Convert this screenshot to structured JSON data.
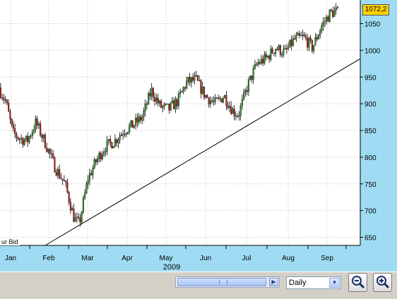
{
  "chart_data": {
    "type": "candlestick",
    "xlabel": "2009",
    "x_ticks": [
      "Jan",
      "Feb",
      "Mar",
      "Apr",
      "May",
      "Jun",
      "Jul",
      "Aug",
      "Sep"
    ],
    "y_ticks": [
      650,
      700,
      750,
      800,
      850,
      900,
      950,
      1000,
      1050
    ],
    "ylim": [
      620,
      1075
    ],
    "grid": true,
    "last_value": "1072,2",
    "series_label": "ur Bid",
    "trendline": {
      "start": [
        "2009-02-01",
        630
      ],
      "end": [
        "2009-09-28",
        1012
      ]
    },
    "candles_weekly_close": [
      [
        "2009-01-01",
        930
      ],
      [
        "2009-01-08",
        905
      ],
      [
        "2009-01-15",
        845
      ],
      [
        "2009-01-22",
        835
      ],
      [
        "2009-01-29",
        830
      ],
      [
        "2009-02-05",
        865
      ],
      [
        "2009-02-12",
        825
      ],
      [
        "2009-02-19",
        780
      ],
      [
        "2009-02-26",
        750
      ],
      [
        "2009-03-05",
        685
      ],
      [
        "2009-03-09",
        675
      ],
      [
        "2009-03-16",
        760
      ],
      [
        "2009-03-23",
        795
      ],
      [
        "2009-03-30",
        820
      ],
      [
        "2009-04-06",
        830
      ],
      [
        "2009-04-13",
        850
      ],
      [
        "2009-04-20",
        860
      ],
      [
        "2009-04-27",
        875
      ],
      [
        "2009-05-04",
        925
      ],
      [
        "2009-05-11",
        895
      ],
      [
        "2009-05-18",
        890
      ],
      [
        "2009-05-25",
        905
      ],
      [
        "2009-06-01",
        940
      ],
      [
        "2009-06-08",
        945
      ],
      [
        "2009-06-15",
        915
      ],
      [
        "2009-06-22",
        900
      ],
      [
        "2009-06-29",
        915
      ],
      [
        "2009-07-06",
        885
      ],
      [
        "2009-07-10",
        880
      ],
      [
        "2009-07-17",
        935
      ],
      [
        "2009-07-24",
        975
      ],
      [
        "2009-07-31",
        985
      ],
      [
        "2009-08-07",
        1005
      ],
      [
        "2009-08-14",
        995
      ],
      [
        "2009-08-21",
        1020
      ],
      [
        "2009-08-28",
        1025
      ],
      [
        "2009-09-04",
        1005
      ],
      [
        "2009-09-11",
        1045
      ],
      [
        "2009-09-18",
        1070
      ],
      [
        "2009-09-22",
        1072
      ]
    ]
  },
  "controls": {
    "period": "Daily"
  },
  "colors": {
    "panel": "#9fdcf3",
    "up": "#2e8b2e",
    "down": "#b22222",
    "last_price_bg": "#ffd200"
  }
}
